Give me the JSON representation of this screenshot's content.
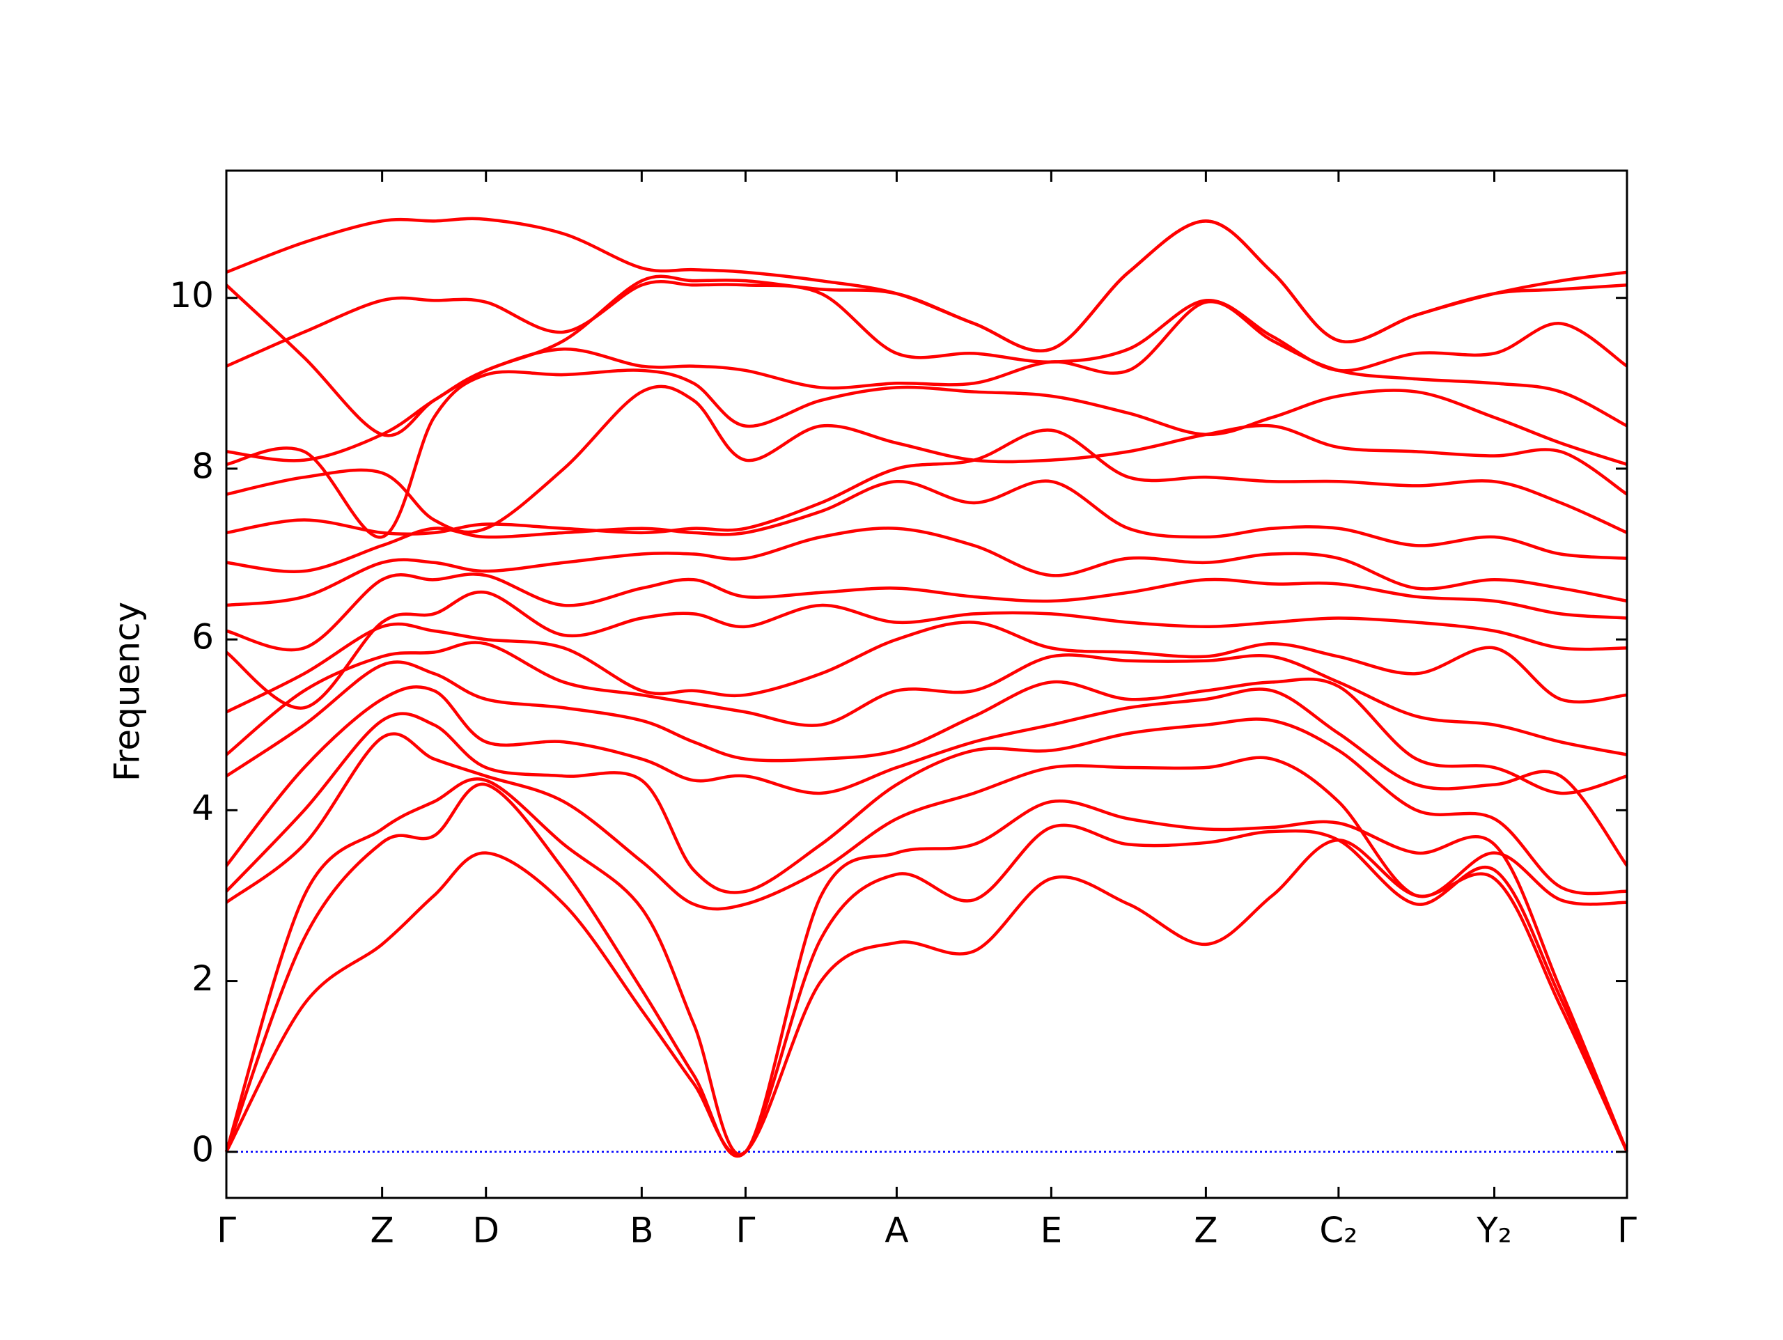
{
  "chart_data": {
    "type": "line",
    "y_label": "Frequency",
    "color": "#ff0000",
    "x": [
      0,
      0.675,
      1.35,
      1.8,
      2.25,
      2.925,
      3.6,
      4.05,
      4.5,
      5.155,
      5.81,
      6.48,
      7.15,
      7.82,
      8.49,
      9.065,
      9.64,
      10.315,
      10.99,
      11.565,
      12.14
    ],
    "xlim": [
      0,
      12.14
    ],
    "ylim": [
      -0.54,
      11.49
    ],
    "xticks": [
      {
        "value": 0,
        "label": "Γ"
      },
      {
        "value": 1.35,
        "label": "Z"
      },
      {
        "value": 2.25,
        "label": "D"
      },
      {
        "value": 3.6,
        "label": "B"
      },
      {
        "value": 4.5,
        "label": "Γ"
      },
      {
        "value": 5.81,
        "label": "A"
      },
      {
        "value": 7.15,
        "label": "E"
      },
      {
        "value": 8.49,
        "label": "Z"
      },
      {
        "value": 9.64,
        "label": "C₂"
      },
      {
        "value": 10.99,
        "label": "Y₂"
      },
      {
        "value": 12.14,
        "label": "Γ"
      }
    ],
    "yticks": [
      0,
      2,
      4,
      6,
      8,
      10
    ],
    "zero_line": {
      "y": 0,
      "color": "#0000ff"
    },
    "series": [
      {
        "values": [
          0,
          1.73,
          2.43,
          3.0,
          3.5,
          2.9,
          1.66,
          0.8,
          0,
          2.0,
          2.45,
          2.35,
          3.2,
          2.9,
          2.43,
          3.0,
          3.65,
          3.0,
          3.2,
          1.7,
          0
        ]
      },
      {
        "values": [
          0,
          2.5,
          3.62,
          3.7,
          4.3,
          3.3,
          1.9,
          0.9,
          0,
          2.5,
          3.25,
          2.95,
          3.8,
          3.6,
          3.62,
          3.75,
          3.65,
          2.9,
          3.3,
          1.8,
          0
        ]
      },
      {
        "values": [
          0,
          3.0,
          3.78,
          4.1,
          4.35,
          3.6,
          2.85,
          1.5,
          0,
          3.0,
          3.5,
          3.6,
          4.1,
          3.9,
          3.78,
          3.8,
          3.85,
          3.5,
          3.6,
          1.9,
          0
        ]
      },
      {
        "values": [
          2.92,
          3.6,
          4.85,
          4.6,
          4.4,
          4.1,
          3.4,
          2.9,
          2.9,
          3.3,
          3.9,
          4.2,
          4.5,
          4.5,
          4.5,
          4.6,
          4.1,
          3.0,
          3.5,
          2.95,
          2.92
        ]
      },
      {
        "values": [
          3.05,
          4.0,
          5.05,
          5.0,
          4.5,
          4.4,
          4.35,
          3.3,
          3.05,
          3.6,
          4.3,
          4.7,
          4.7,
          4.9,
          5.0,
          5.05,
          4.7,
          4.0,
          3.9,
          3.1,
          3.05
        ]
      },
      {
        "values": [
          3.35,
          4.5,
          5.3,
          5.4,
          4.8,
          4.8,
          4.6,
          4.35,
          4.4,
          4.2,
          4.5,
          4.8,
          5.0,
          5.2,
          5.3,
          5.4,
          4.9,
          4.3,
          4.3,
          4.4,
          3.35
        ]
      },
      {
        "values": [
          4.4,
          5.0,
          5.7,
          5.6,
          5.3,
          5.2,
          5.05,
          4.8,
          4.6,
          4.6,
          4.7,
          5.1,
          5.5,
          5.3,
          5.4,
          5.5,
          5.45,
          4.6,
          4.5,
          4.2,
          4.4
        ]
      },
      {
        "values": [
          4.65,
          5.4,
          5.8,
          5.85,
          5.95,
          5.5,
          5.35,
          5.25,
          5.15,
          5.0,
          5.4,
          5.4,
          5.8,
          5.75,
          5.75,
          5.8,
          5.5,
          5.1,
          5.0,
          4.8,
          4.65
        ]
      },
      {
        "values": [
          5.15,
          5.6,
          6.15,
          6.1,
          6.0,
          5.9,
          5.4,
          5.4,
          5.35,
          5.6,
          6.0,
          6.2,
          5.9,
          5.85,
          5.8,
          5.95,
          5.8,
          5.6,
          5.9,
          5.3,
          5.35
        ]
      },
      {
        "values": [
          5.85,
          5.2,
          6.2,
          6.3,
          6.55,
          6.05,
          6.25,
          6.3,
          6.15,
          6.4,
          6.2,
          6.3,
          6.3,
          6.2,
          6.15,
          6.2,
          6.25,
          6.2,
          6.1,
          5.9,
          5.9
        ]
      },
      {
        "values": [
          6.1,
          5.9,
          6.7,
          6.7,
          6.75,
          6.4,
          6.6,
          6.7,
          6.5,
          6.55,
          6.6,
          6.5,
          6.45,
          6.55,
          6.7,
          6.65,
          6.65,
          6.5,
          6.45,
          6.3,
          6.25
        ]
      },
      {
        "values": [
          6.4,
          6.5,
          6.9,
          6.9,
          6.8,
          6.9,
          7.0,
          7.0,
          6.95,
          7.2,
          7.3,
          7.1,
          6.75,
          6.95,
          6.9,
          7.0,
          6.95,
          6.6,
          6.7,
          6.6,
          6.45
        ]
      },
      {
        "values": [
          6.9,
          6.8,
          7.1,
          7.3,
          7.2,
          7.25,
          7.3,
          7.25,
          7.25,
          7.5,
          7.85,
          7.6,
          7.85,
          7.3,
          7.2,
          7.3,
          7.3,
          7.1,
          7.2,
          7.0,
          6.95
        ]
      },
      {
        "values": [
          7.25,
          7.4,
          7.25,
          7.25,
          7.35,
          7.3,
          7.25,
          7.3,
          7.3,
          7.6,
          8.0,
          8.1,
          8.45,
          7.9,
          7.9,
          7.85,
          7.85,
          7.8,
          7.85,
          7.6,
          7.25
        ]
      },
      {
        "values": [
          7.7,
          7.9,
          7.95,
          7.4,
          7.3,
          8.0,
          8.9,
          8.8,
          8.1,
          8.5,
          8.3,
          8.1,
          8.1,
          8.2,
          8.4,
          8.5,
          8.25,
          8.2,
          8.15,
          8.2,
          7.7
        ]
      },
      {
        "values": [
          8.05,
          8.2,
          7.2,
          8.6,
          9.1,
          9.1,
          9.15,
          9.0,
          8.5,
          8.8,
          8.95,
          8.9,
          8.85,
          8.65,
          8.4,
          8.6,
          8.85,
          8.9,
          8.6,
          8.3,
          8.05
        ]
      },
      {
        "values": [
          8.2,
          8.1,
          8.4,
          8.8,
          9.15,
          9.4,
          9.2,
          9.2,
          9.15,
          8.95,
          9.0,
          9.0,
          9.25,
          9.15,
          9.95,
          9.5,
          9.15,
          9.05,
          9.0,
          8.9,
          8.5
        ]
      },
      {
        "values": [
          9.2,
          9.6,
          9.97,
          9.97,
          9.95,
          9.6,
          10.15,
          10.15,
          10.15,
          10.05,
          9.35,
          9.35,
          9.25,
          9.4,
          9.97,
          9.55,
          9.15,
          9.35,
          9.35,
          9.7,
          9.2
        ]
      },
      {
        "values": [
          10.15,
          9.3,
          8.4,
          8.8,
          9.15,
          9.5,
          10.2,
          10.2,
          10.2,
          10.1,
          10.05,
          9.7,
          9.4,
          10.3,
          10.9,
          10.3,
          9.5,
          9.8,
          10.05,
          10.1,
          10.15
        ]
      },
      {
        "values": [
          10.3,
          10.65,
          10.9,
          10.9,
          10.92,
          10.75,
          10.35,
          10.33,
          10.3,
          10.2,
          10.05,
          9.7,
          9.4,
          10.3,
          10.9,
          10.3,
          9.5,
          9.8,
          10.05,
          10.2,
          10.3
        ]
      }
    ]
  }
}
